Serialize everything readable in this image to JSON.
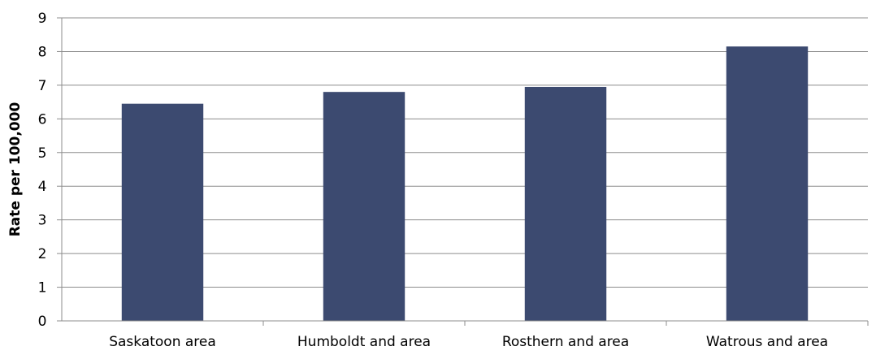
{
  "chart_data": {
    "type": "bar",
    "categories": [
      "Saskatoon area",
      "Humboldt and area",
      "Rosthern and area",
      "Watrous and area"
    ],
    "values": [
      6.45,
      6.8,
      6.95,
      8.15
    ],
    "title": "",
    "xlabel": "",
    "ylabel": "Rate per 100,000",
    "ylim": [
      0,
      9
    ],
    "yticks": [
      "0",
      "1",
      "2",
      "3",
      "4",
      "5",
      "6",
      "7",
      "8",
      "9"
    ],
    "grid": true,
    "legend": "none",
    "bar_color": "#3c4a70"
  }
}
